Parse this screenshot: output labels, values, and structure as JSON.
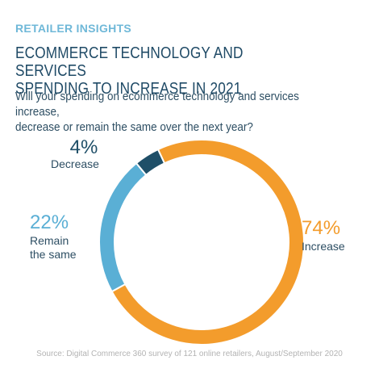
{
  "header": {
    "kicker": "RETAILER INSIGHTS",
    "title_line1": "ECOMMERCE TECHNOLOGY AND SERVICES",
    "title_line2": "SPENDING TO INCREASE IN 2021",
    "subtitle_line1": "Will your spending on ecommerce technology and services increase,",
    "subtitle_line2": "decrease or remain the same over the next year?"
  },
  "chart_data": {
    "type": "pie",
    "style": "donut",
    "slices": [
      {
        "label": "Increase",
        "value": 74,
        "value_label": "74%",
        "color": "#f39c2c"
      },
      {
        "label_line1": "Remain",
        "label_line2": "the same",
        "label": "Remain the same",
        "value": 22,
        "value_label": "22%",
        "color": "#5aafd5"
      },
      {
        "label": "Decrease",
        "value": 4,
        "value_label": "4%",
        "color": "#1f4f68"
      }
    ]
  },
  "footer": {
    "source": "Source: Digital Commerce 360 survey of 121 online retailers, August/September 2020"
  }
}
